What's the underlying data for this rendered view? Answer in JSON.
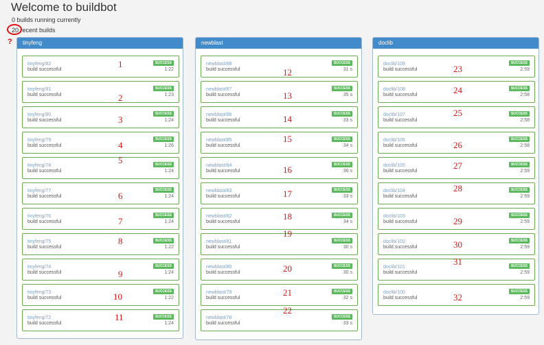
{
  "header": {
    "title": "Welcome to buildbot",
    "running_text": "0 builds running currently",
    "recent_count": "20",
    "recent_text": "recent builds",
    "help_icon": "?"
  },
  "colors": {
    "accent": "#428bca",
    "success": "#5cb85c",
    "annotation": "#e01010"
  },
  "builders": [
    {
      "name": "tinyfeng",
      "builds": [
        {
          "id": "tinyfeng/82",
          "status": "build successful",
          "badge": "SUCCESS",
          "duration": "1:22",
          "annotation": "1"
        },
        {
          "id": "tinyfeng/81",
          "status": "build successful",
          "badge": "SUCCESS",
          "duration": "1:23",
          "annotation": "2"
        },
        {
          "id": "tinyfeng/80",
          "status": "build successful",
          "badge": "SUCCESS",
          "duration": "1:24",
          "annotation": "3"
        },
        {
          "id": "tinyfeng/79",
          "status": "build successful",
          "badge": "SUCCESS",
          "duration": "1:26",
          "annotation": "4"
        },
        {
          "id": "tinyfeng/78",
          "status": "build successful",
          "badge": "SUCCESS",
          "duration": "1:24",
          "annotation": "5"
        },
        {
          "id": "tinyfeng/77",
          "status": "build successful",
          "badge": "SUCCESS",
          "duration": "1:24",
          "annotation": "6"
        },
        {
          "id": "tinyfeng/76",
          "status": "build successful",
          "badge": "SUCCESS",
          "duration": "1:24",
          "annotation": "7"
        },
        {
          "id": "tinyfeng/75",
          "status": "build successful",
          "badge": "SUCCESS",
          "duration": "1:22",
          "annotation": "8"
        },
        {
          "id": "tinyfeng/74",
          "status": "build successful",
          "badge": "SUCCESS",
          "duration": "1:24",
          "annotation": "9"
        },
        {
          "id": "tinyfeng/73",
          "status": "build successful",
          "badge": "SUCCESS",
          "duration": "1:22",
          "annotation": "10"
        },
        {
          "id": "tinyfeng/72",
          "status": "build successful",
          "badge": "SUCCESS",
          "duration": "1:24",
          "annotation": "11"
        }
      ]
    },
    {
      "name": "newblast",
      "builds": [
        {
          "id": "newblast/88",
          "status": "build successful",
          "badge": "SUCCESS",
          "duration": "31 s",
          "annotation": "12"
        },
        {
          "id": "newblast/87",
          "status": "build successful",
          "badge": "SUCCESS",
          "duration": "35 s",
          "annotation": "13"
        },
        {
          "id": "newblast/86",
          "status": "build successful",
          "badge": "SUCCESS",
          "duration": "33 s",
          "annotation": "14"
        },
        {
          "id": "newblast/85",
          "status": "build successful",
          "badge": "SUCCESS",
          "duration": "34 s",
          "annotation": "15"
        },
        {
          "id": "newblast/84",
          "status": "build successful",
          "badge": "SUCCESS",
          "duration": "36 s",
          "annotation": "16"
        },
        {
          "id": "newblast/83",
          "status": "build successful",
          "badge": "SUCCESS",
          "duration": "33 s",
          "annotation": "17"
        },
        {
          "id": "newblast/82",
          "status": "build successful",
          "badge": "SUCCESS",
          "duration": "34 s",
          "annotation": "18"
        },
        {
          "id": "newblast/81",
          "status": "build successful",
          "badge": "SUCCESS",
          "duration": "30 s",
          "annotation": "19"
        },
        {
          "id": "newblast/80",
          "status": "build successful",
          "badge": "SUCCESS",
          "duration": "30 s",
          "annotation": "20"
        },
        {
          "id": "newblast/79",
          "status": "build successful",
          "badge": "SUCCESS",
          "duration": "32 s",
          "annotation": "21"
        },
        {
          "id": "newblast/78",
          "status": "build successful",
          "badge": "SUCCESS",
          "duration": "33 s",
          "annotation": "22"
        }
      ]
    },
    {
      "name": "doclib",
      "builds": [
        {
          "id": "doclib/109",
          "status": "build successful",
          "badge": "SUCCESS",
          "duration": "2:59",
          "annotation": "23"
        },
        {
          "id": "doclib/108",
          "status": "build successful",
          "badge": "SUCCESS",
          "duration": "2:58",
          "annotation": "24"
        },
        {
          "id": "doclib/107",
          "status": "build successful",
          "badge": "SUCCESS",
          "duration": "2:58",
          "annotation": "25"
        },
        {
          "id": "doclib/106",
          "status": "build successful",
          "badge": "SUCCESS",
          "duration": "2:58",
          "annotation": "26"
        },
        {
          "id": "doclib/105",
          "status": "build successful",
          "badge": "SUCCESS",
          "duration": "2:59",
          "annotation": "27"
        },
        {
          "id": "doclib/104",
          "status": "build successful",
          "badge": "SUCCESS",
          "duration": "2:59",
          "annotation": "28"
        },
        {
          "id": "doclib/103",
          "status": "build successful",
          "badge": "SUCCESS",
          "duration": "2:59",
          "annotation": "29"
        },
        {
          "id": "doclib/102",
          "status": "build successful",
          "badge": "SUCCESS",
          "duration": "2:59",
          "annotation": "30"
        },
        {
          "id": "doclib/101",
          "status": "build successful",
          "badge": "SUCCESS",
          "duration": "2:59",
          "annotation": "31"
        },
        {
          "id": "doclib/100",
          "status": "build successful",
          "badge": "SUCCESS",
          "duration": "2:59",
          "annotation": "32"
        }
      ]
    }
  ]
}
